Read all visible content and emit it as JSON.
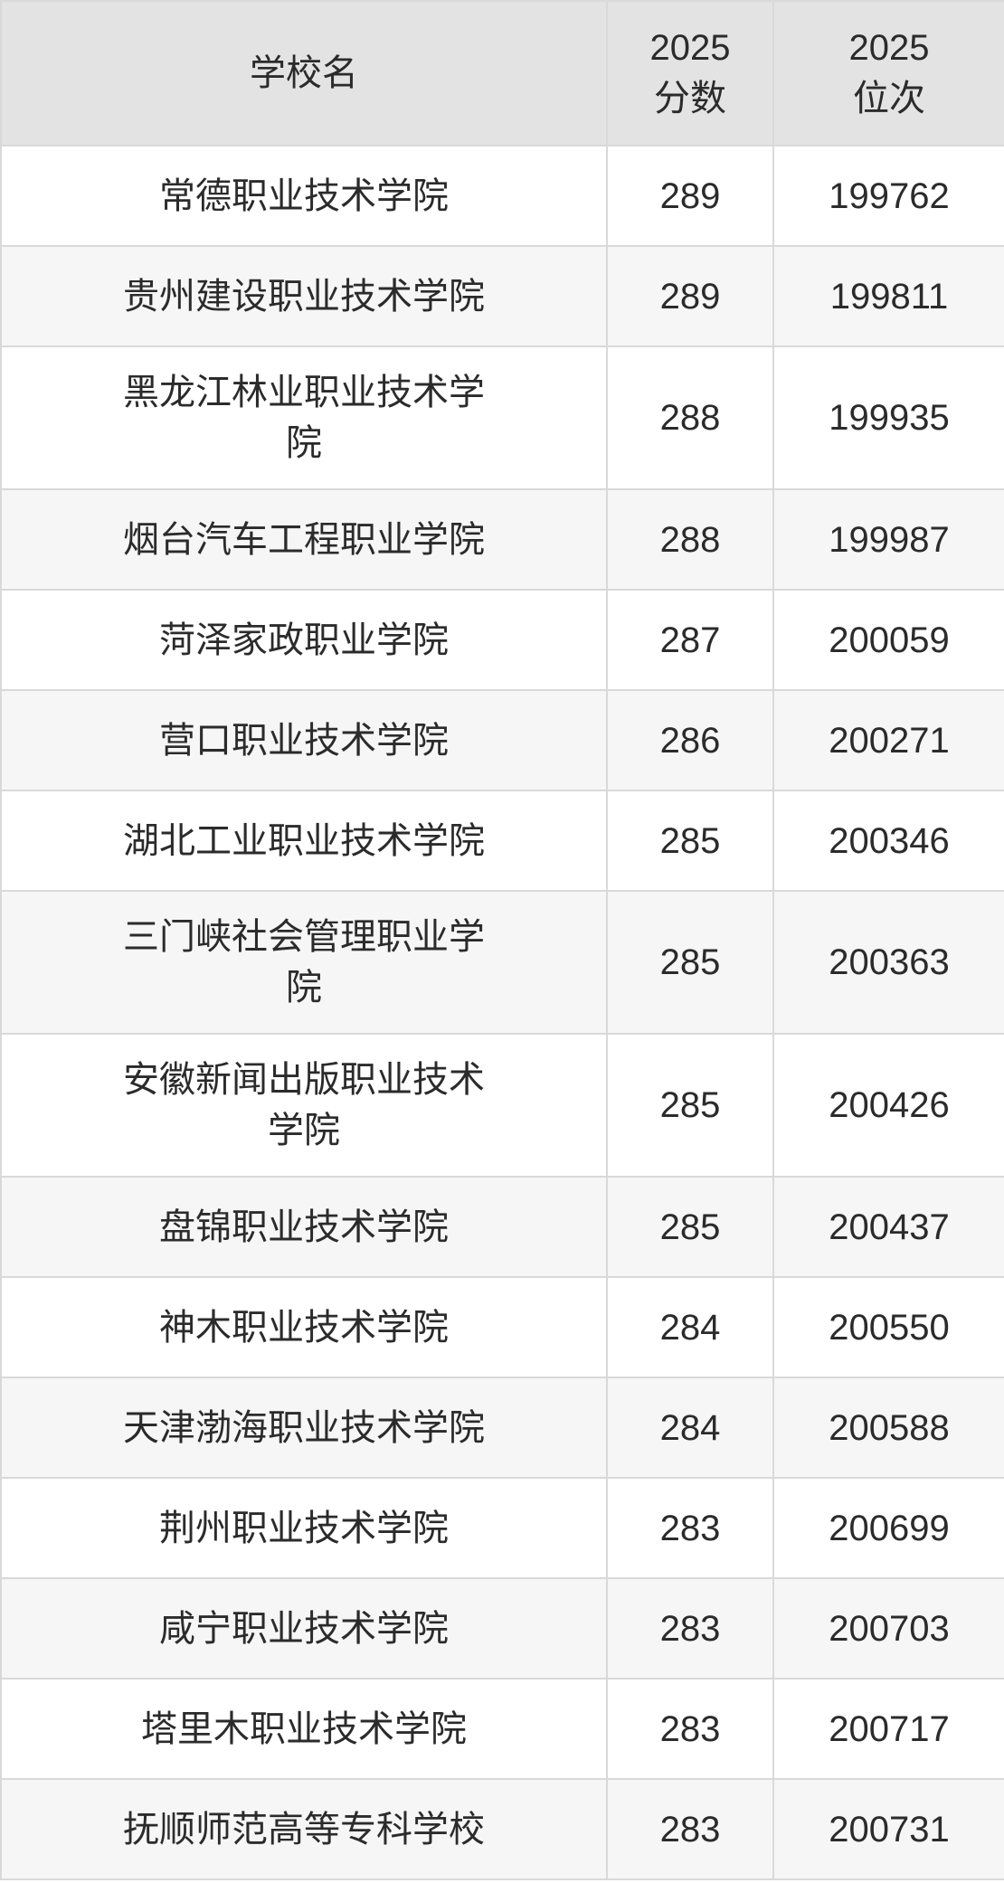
{
  "chart_data": {
    "type": "table",
    "columns": [
      {
        "id": "name",
        "label": "学校名"
      },
      {
        "id": "score",
        "label": "2025\n分数"
      },
      {
        "id": "rank",
        "label": "2025\n位次"
      }
    ],
    "rows": [
      {
        "name": "常德职业技术学院",
        "score": "289",
        "rank": "199762"
      },
      {
        "name": "贵州建设职业技术学院",
        "score": "289",
        "rank": "199811"
      },
      {
        "name": "黑龙江林业职业技术学院",
        "score": "288",
        "rank": "199935"
      },
      {
        "name": "烟台汽车工程职业学院",
        "score": "288",
        "rank": "199987"
      },
      {
        "name": "菏泽家政职业学院",
        "score": "287",
        "rank": "200059"
      },
      {
        "name": "营口职业技术学院",
        "score": "286",
        "rank": "200271"
      },
      {
        "name": "湖北工业职业技术学院",
        "score": "285",
        "rank": "200346"
      },
      {
        "name": "三门峡社会管理职业学院",
        "score": "285",
        "rank": "200363"
      },
      {
        "name": "安徽新闻出版职业技术学院",
        "score": "285",
        "rank": "200426"
      },
      {
        "name": "盘锦职业技术学院",
        "score": "285",
        "rank": "200437"
      },
      {
        "name": "神木职业技术学院",
        "score": "284",
        "rank": "200550"
      },
      {
        "name": "天津渤海职业技术学院",
        "score": "284",
        "rank": "200588"
      },
      {
        "name": "荆州职业技术学院",
        "score": "283",
        "rank": "200699"
      },
      {
        "name": "咸宁职业技术学院",
        "score": "283",
        "rank": "200703"
      },
      {
        "name": "塔里木职业技术学院",
        "score": "283",
        "rank": "200717"
      },
      {
        "name": "抚顺师范高等专科学校",
        "score": "283",
        "rank": "200731"
      }
    ],
    "title": "",
    "layout_hints": {
      "zebra_striping": true,
      "header_lines": 2,
      "grid": true
    }
  },
  "colors": {
    "text": "#2b2b2b",
    "border": "#d9d9d9",
    "header_bg": "#e3e3e3",
    "alt_row_bg": "#f6f6f6"
  }
}
